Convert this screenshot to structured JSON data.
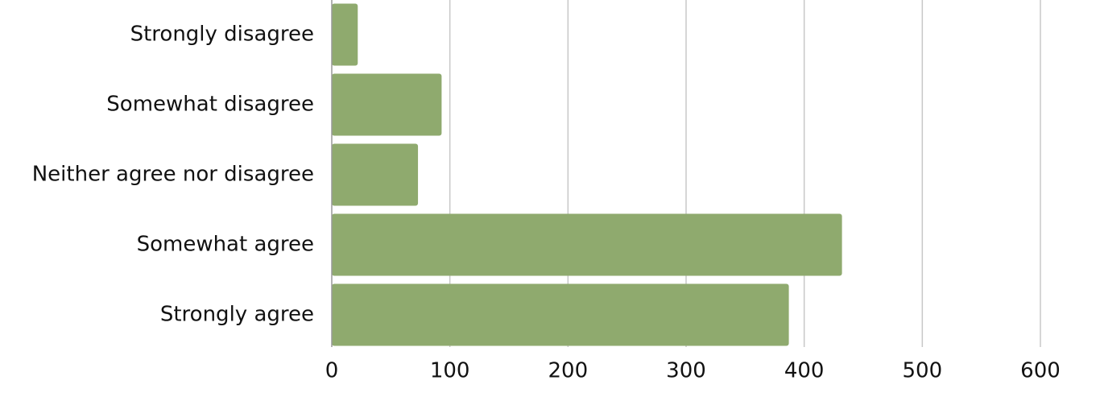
{
  "chart_data": {
    "type": "bar",
    "orientation": "horizontal",
    "categories": [
      "Strongly disagree",
      "Somewhat disagree",
      "Neither agree nor disagree",
      "Somewhat agree",
      "Strongly agree"
    ],
    "values": [
      22,
      93,
      73,
      432,
      387
    ],
    "color": "#8faa6e",
    "xlim": [
      0,
      600
    ],
    "xticks": [
      0,
      100,
      200,
      300,
      400,
      500,
      600
    ],
    "grid": true
  }
}
